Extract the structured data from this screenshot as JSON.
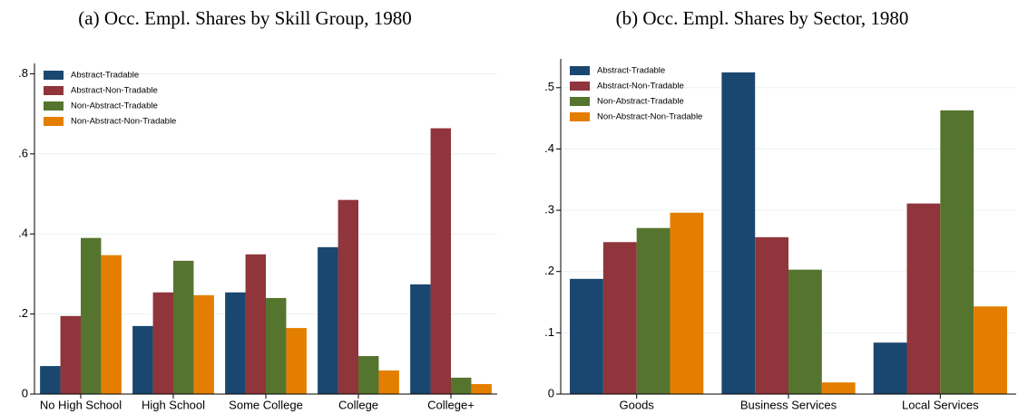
{
  "chart_data": [
    {
      "type": "bar",
      "title": "(a) Occ. Empl. Shares by Skill Group, 1980",
      "categories": [
        "No High School",
        "High School",
        "Some College",
        "College",
        "College+"
      ],
      "series": [
        {
          "name": "Abstract-Tradable",
          "color": "#1a476f",
          "values": [
            0.07,
            0.17,
            0.254,
            0.367,
            0.274
          ]
        },
        {
          "name": "Abstract-Non-Tradable",
          "color": "#90353b",
          "values": [
            0.195,
            0.254,
            0.349,
            0.485,
            0.664
          ]
        },
        {
          "name": "Non-Abstract-Tradable",
          "color": "#55752f",
          "values": [
            0.39,
            0.333,
            0.24,
            0.095,
            0.041
          ]
        },
        {
          "name": "Non-Abstract-Non-Tradable",
          "color": "#e37e00",
          "values": [
            0.347,
            0.247,
            0.165,
            0.059,
            0.025
          ]
        }
      ],
      "ylim": [
        0,
        0.826
      ],
      "yticks": [
        0,
        {
          "value": 0.2,
          "label": ".2"
        },
        {
          "value": 0.4,
          "label": ".4"
        },
        {
          "value": 0.6,
          "label": ".6"
        },
        {
          "value": 0.8,
          "label": ".8"
        }
      ],
      "grid": true,
      "legend": "top-left"
    },
    {
      "type": "bar",
      "title": "(b) Occ. Empl. Shares by Sector, 1980",
      "categories": [
        "Goods",
        "Business Services",
        "Local Services"
      ],
      "series": [
        {
          "name": "Abstract-Tradable",
          "color": "#1a476f",
          "values": [
            0.188,
            0.525,
            0.084
          ]
        },
        {
          "name": "Abstract-Non-Tradable",
          "color": "#90353b",
          "values": [
            0.248,
            0.256,
            0.311
          ]
        },
        {
          "name": "Non-Abstract-Tradable",
          "color": "#55752f",
          "values": [
            0.271,
            0.203,
            0.463
          ]
        },
        {
          "name": "Non-Abstract-Non-Tradable",
          "color": "#e37e00",
          "values": [
            0.296,
            0.019,
            0.143
          ]
        }
      ],
      "ylim": [
        0,
        0.547
      ],
      "yticks": [
        0,
        {
          "value": 0.1,
          "label": ".1"
        },
        {
          "value": 0.2,
          "label": ".2"
        },
        {
          "value": 0.3,
          "label": ".3"
        },
        {
          "value": 0.4,
          "label": ".4"
        },
        {
          "value": 0.5,
          "label": ".5"
        }
      ],
      "grid": true,
      "legend": "top-left"
    }
  ]
}
